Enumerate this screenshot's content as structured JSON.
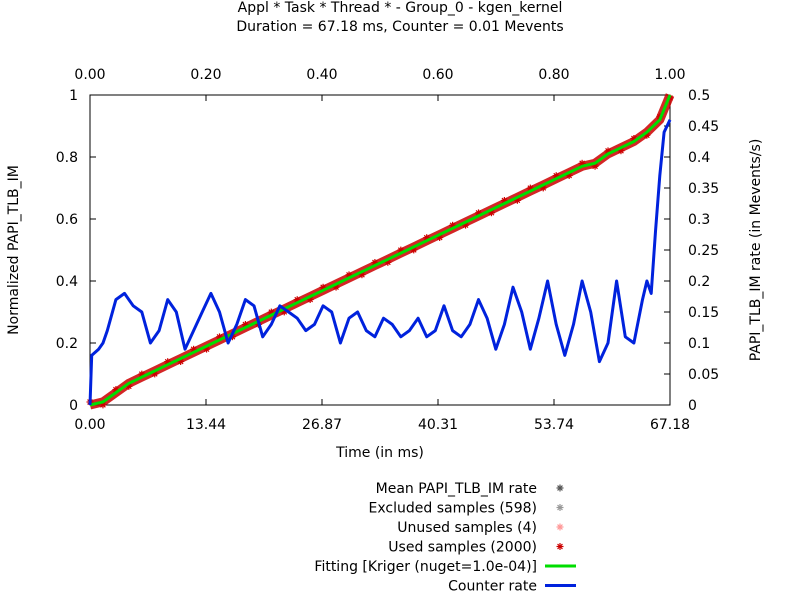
{
  "chart_data": {
    "type": "line",
    "title": "Appl * Task * Thread * - Group_0 - kgen_kernel",
    "subtitle": "Duration = 67.18 ms, Counter = 0.01 Mevents",
    "xlabel": "Time (in ms)",
    "ylabel": "Normalized PAPI_TLB_IM",
    "y2label": "PAPI_TLB_IM rate (in Mevents/s)",
    "xlim": [
      0,
      67.18
    ],
    "ylim": [
      0,
      1
    ],
    "y2lim": [
      0,
      0.5
    ],
    "x2lim": [
      0,
      1
    ],
    "grid": false,
    "legend_position": "bottom-right",
    "x_ticks": [
      "0.00",
      "13.44",
      "26.87",
      "40.31",
      "53.74",
      "67.18"
    ],
    "x2_ticks": [
      "0.00",
      "0.20",
      "0.40",
      "0.60",
      "0.80",
      "1.00"
    ],
    "y_ticks": [
      "0",
      "0.2",
      "0.4",
      "0.6",
      "0.8",
      "1"
    ],
    "y2_ticks": [
      "0",
      "0.05",
      "0.1",
      "0.15",
      "0.2",
      "0.25",
      "0.3",
      "0.35",
      "0.4",
      "0.45",
      "0.5"
    ],
    "series": [
      {
        "name": "Mean PAPI_TLB_IM rate",
        "kind": "points",
        "color": "#555555",
        "axis": "y",
        "values": []
      },
      {
        "name": "Excluded samples (598)",
        "kind": "points",
        "color": "#999999",
        "axis": "y",
        "values": []
      },
      {
        "name": "Unused samples (4)",
        "kind": "points",
        "color": "#ff9999",
        "axis": "y",
        "values": []
      },
      {
        "name": "Used samples (2000)",
        "kind": "points",
        "color": "#cc0000",
        "axis": "y",
        "x": [
          0.0,
          1.5,
          3.0,
          4.5,
          6.0,
          7.5,
          9.0,
          10.5,
          12.0,
          13.5,
          15.0,
          16.5,
          18.0,
          19.5,
          21.0,
          22.5,
          24.0,
          25.5,
          27.0,
          28.5,
          30.0,
          31.5,
          33.0,
          34.5,
          36.0,
          37.5,
          39.0,
          40.5,
          42.0,
          43.5,
          45.0,
          46.5,
          48.0,
          49.5,
          51.0,
          52.5,
          54.0,
          55.5,
          57.0,
          58.5,
          60.0,
          61.5,
          63.0,
          64.5,
          66.0,
          67.18
        ],
        "values": [
          0.0,
          0.01,
          0.04,
          0.07,
          0.09,
          0.11,
          0.13,
          0.15,
          0.17,
          0.19,
          0.21,
          0.23,
          0.25,
          0.27,
          0.29,
          0.31,
          0.33,
          0.35,
          0.37,
          0.39,
          0.41,
          0.43,
          0.45,
          0.47,
          0.49,
          0.51,
          0.53,
          0.55,
          0.57,
          0.59,
          0.61,
          0.63,
          0.65,
          0.67,
          0.69,
          0.71,
          0.73,
          0.75,
          0.77,
          0.78,
          0.81,
          0.83,
          0.85,
          0.88,
          0.92,
          1.0
        ]
      },
      {
        "name": "Fitting [Kriger (nuget=1.0e-04)]",
        "kind": "line",
        "color": "#00dd00",
        "axis": "y",
        "x": [
          0.0,
          1.5,
          3.0,
          4.5,
          6.0,
          7.5,
          9.0,
          10.5,
          12.0,
          13.5,
          15.0,
          16.5,
          18.0,
          19.5,
          21.0,
          22.5,
          24.0,
          25.5,
          27.0,
          28.5,
          30.0,
          31.5,
          33.0,
          34.5,
          36.0,
          37.5,
          39.0,
          40.5,
          42.0,
          43.5,
          45.0,
          46.5,
          48.0,
          49.5,
          51.0,
          52.5,
          54.0,
          55.5,
          57.0,
          58.5,
          60.0,
          61.5,
          63.0,
          64.5,
          66.0,
          67.18
        ],
        "values": [
          0.0,
          0.01,
          0.04,
          0.07,
          0.09,
          0.11,
          0.13,
          0.15,
          0.17,
          0.19,
          0.21,
          0.23,
          0.25,
          0.27,
          0.29,
          0.31,
          0.33,
          0.35,
          0.37,
          0.39,
          0.41,
          0.43,
          0.45,
          0.47,
          0.49,
          0.51,
          0.53,
          0.55,
          0.57,
          0.59,
          0.61,
          0.63,
          0.65,
          0.67,
          0.69,
          0.71,
          0.73,
          0.75,
          0.77,
          0.78,
          0.81,
          0.83,
          0.85,
          0.88,
          0.92,
          1.0
        ]
      },
      {
        "name": "Counter rate",
        "kind": "line",
        "color": "#0022dd",
        "axis": "y2",
        "x": [
          0.0,
          0.2,
          1.0,
          1.5,
          2.0,
          3.0,
          4.0,
          5.0,
          6.0,
          7.0,
          8.0,
          9.0,
          10.0,
          11.0,
          12.0,
          13.0,
          14.0,
          15.0,
          16.0,
          17.0,
          18.0,
          19.0,
          20.0,
          21.0,
          22.0,
          23.0,
          24.0,
          25.0,
          26.0,
          27.0,
          28.0,
          29.0,
          30.0,
          31.0,
          32.0,
          33.0,
          34.0,
          35.0,
          36.0,
          37.0,
          38.0,
          39.0,
          40.0,
          41.0,
          42.0,
          43.0,
          44.0,
          45.0,
          46.0,
          47.0,
          48.0,
          49.0,
          50.0,
          51.0,
          52.0,
          53.0,
          54.0,
          55.0,
          56.0,
          57.0,
          58.0,
          59.0,
          60.0,
          61.0,
          62.0,
          63.0,
          64.0,
          64.5,
          65.0,
          65.5,
          66.0,
          66.5,
          67.18
        ],
        "values": [
          0.0,
          0.08,
          0.09,
          0.1,
          0.12,
          0.17,
          0.18,
          0.16,
          0.15,
          0.1,
          0.12,
          0.17,
          0.15,
          0.09,
          0.12,
          0.15,
          0.18,
          0.15,
          0.1,
          0.13,
          0.17,
          0.16,
          0.11,
          0.13,
          0.16,
          0.15,
          0.14,
          0.12,
          0.13,
          0.16,
          0.15,
          0.1,
          0.14,
          0.15,
          0.12,
          0.11,
          0.14,
          0.13,
          0.11,
          0.12,
          0.14,
          0.11,
          0.12,
          0.16,
          0.12,
          0.11,
          0.13,
          0.17,
          0.14,
          0.09,
          0.13,
          0.19,
          0.15,
          0.09,
          0.14,
          0.2,
          0.13,
          0.08,
          0.13,
          0.2,
          0.15,
          0.07,
          0.1,
          0.2,
          0.11,
          0.1,
          0.17,
          0.2,
          0.18,
          0.28,
          0.37,
          0.44,
          0.46
        ]
      }
    ]
  }
}
